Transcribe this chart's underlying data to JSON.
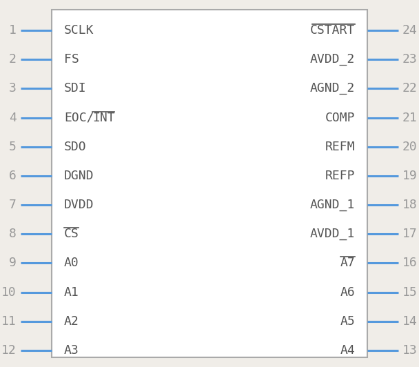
{
  "bg_color": "#f0ede8",
  "body_fill": "#ffffff",
  "body_edge_color": "#aaaaaa",
  "pin_color": "#5599dd",
  "number_color": "#999999",
  "label_color": "#555555",
  "fig_bg": "#f0ede8",
  "left_pins": [
    {
      "num": 1,
      "label": "SCLK",
      "overline_part": null
    },
    {
      "num": 2,
      "label": "FS",
      "overline_part": null
    },
    {
      "num": 3,
      "label": "SDI",
      "overline_part": null
    },
    {
      "num": 4,
      "label": "EOC/INT",
      "overline_part": "INT",
      "prefix": "EOC/"
    },
    {
      "num": 5,
      "label": "SDO",
      "overline_part": null
    },
    {
      "num": 6,
      "label": "DGND",
      "overline_part": null
    },
    {
      "num": 7,
      "label": "DVDD",
      "overline_part": null
    },
    {
      "num": 8,
      "label": "CS",
      "overline_part": "CS",
      "prefix": ""
    },
    {
      "num": 9,
      "label": "A0",
      "overline_part": null
    },
    {
      "num": 10,
      "label": "A1",
      "overline_part": null
    },
    {
      "num": 11,
      "label": "A2",
      "overline_part": null
    },
    {
      "num": 12,
      "label": "A3",
      "overline_part": null
    }
  ],
  "right_pins": [
    {
      "num": 24,
      "label": "CSTART",
      "overline_part": "CSTART",
      "prefix": ""
    },
    {
      "num": 23,
      "label": "AVDD_2",
      "overline_part": null
    },
    {
      "num": 22,
      "label": "AGND_2",
      "overline_part": null
    },
    {
      "num": 21,
      "label": "COMP",
      "overline_part": null
    },
    {
      "num": 20,
      "label": "REFM",
      "overline_part": null
    },
    {
      "num": 19,
      "label": "REFP",
      "overline_part": null
    },
    {
      "num": 18,
      "label": "AGND_1",
      "overline_part": null
    },
    {
      "num": 17,
      "label": "AVDD_1",
      "overline_part": null
    },
    {
      "num": 16,
      "label": "A7",
      "overline_part": "A7",
      "prefix": ""
    },
    {
      "num": 15,
      "label": "A6",
      "overline_part": null
    },
    {
      "num": 14,
      "label": "A5",
      "overline_part": null
    },
    {
      "num": 13,
      "label": "A4",
      "overline_part": null
    }
  ],
  "font_size_label": 13,
  "font_size_num": 13
}
